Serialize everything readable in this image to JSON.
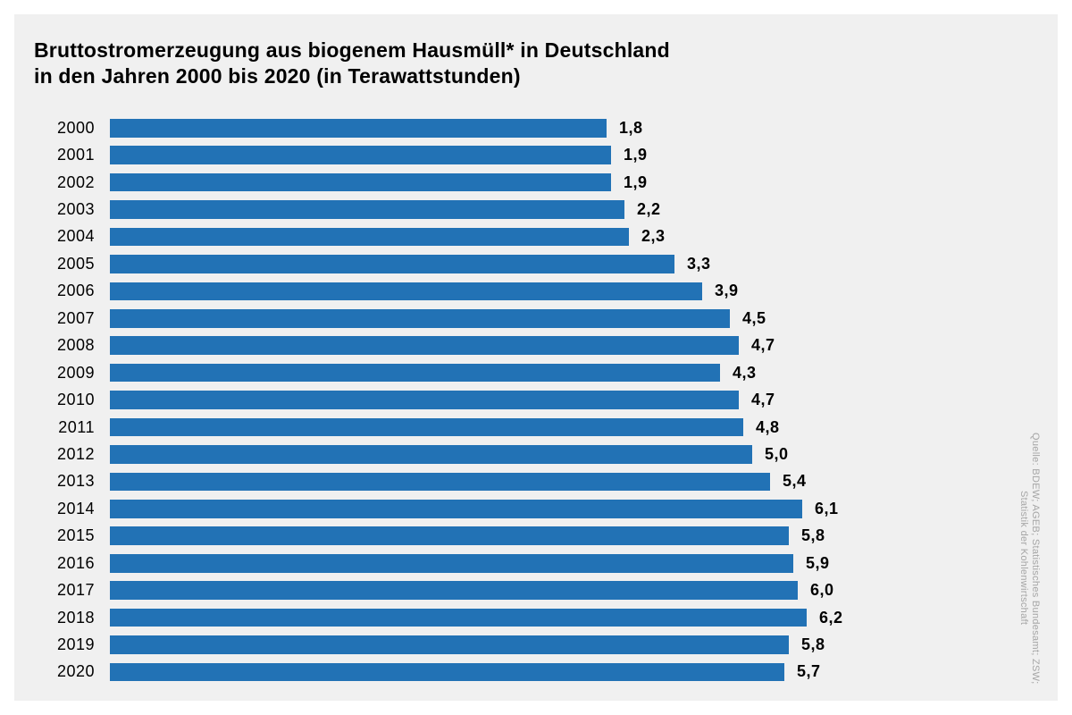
{
  "title": {
    "line1": "Bruttostromerzeugung aus biogenem Hausmüll* in Deutschland",
    "line2": "in den Jahren 2000 bis 2020 (in Terawattstunden)"
  },
  "source": {
    "line1": "Quelle: BDEW; AGEB; Statistisches Bundesamt; ZSW;",
    "line2": "Statistik der Kohlenwirtschaft"
  },
  "colors": {
    "bar": "#2272b5",
    "card_background": "#f0f0f0",
    "page_background": "#ffffff",
    "title_text": "#000000",
    "source_text": "#a6a6a6"
  },
  "chart_data": {
    "type": "bar",
    "orientation": "horizontal",
    "title": "Bruttostromerzeugung aus biogenem Hausmüll* in Deutschland in den Jahren 2000 bis 2020 (in Terawattstunden)",
    "unit": "Terawattstunden",
    "categories": [
      "2000",
      "2001",
      "2002",
      "2003",
      "2004",
      "2005",
      "2006",
      "2007",
      "2008",
      "2009",
      "2010",
      "2011",
      "2012",
      "2013",
      "2014",
      "2015",
      "2016",
      "2017",
      "2018",
      "2019",
      "2020"
    ],
    "values": [
      1.8,
      1.9,
      1.9,
      2.2,
      2.3,
      3.3,
      3.9,
      4.5,
      4.7,
      4.3,
      4.7,
      4.8,
      5.0,
      5.4,
      6.1,
      5.8,
      5.9,
      6.0,
      6.2,
      5.8,
      5.7
    ],
    "value_labels": [
      "1,8",
      "1,9",
      "1,9",
      "2,2",
      "2,3",
      "3,3",
      "3,9",
      "4,5",
      "4,7",
      "4,3",
      "4,7",
      "4,8",
      "5,0",
      "5,4",
      "6,1",
      "5,8",
      "5,9",
      "6,0",
      "6,2",
      "5,8",
      "5,7"
    ],
    "data_labels_shown": true,
    "grid": false,
    "legend": false,
    "axis_ticks_shown": false,
    "note_baseline": "bars rendered with a large non-zero visual baseline as in source image"
  }
}
